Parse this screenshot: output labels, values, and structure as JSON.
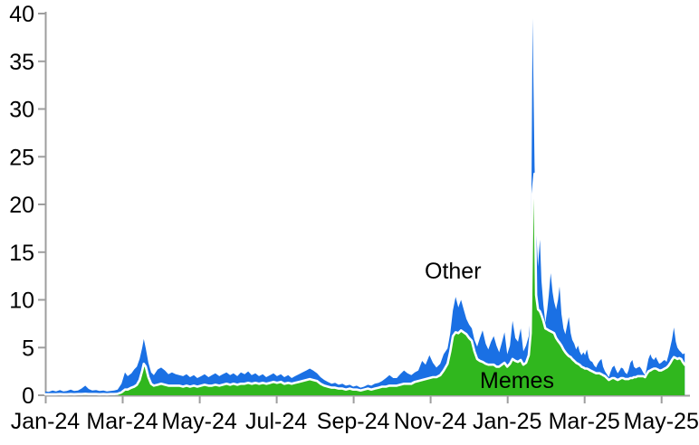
{
  "chart_data": {
    "type": "area",
    "stacked": true,
    "title": "",
    "xlabel": "",
    "ylabel": "",
    "ylim": [
      0,
      40
    ],
    "xlim_months": [
      0,
      16.7
    ],
    "x_unit": "months since Jan-2024 (fractional)",
    "grid": false,
    "legend": "inline-annotations",
    "y_ticks": [
      0,
      5,
      10,
      15,
      20,
      25,
      30,
      35,
      40
    ],
    "x_ticks": [
      {
        "label": "Jan-24",
        "m": 0
      },
      {
        "label": "Mar-24",
        "m": 2
      },
      {
        "label": "May-24",
        "m": 4
      },
      {
        "label": "Jul-24",
        "m": 6
      },
      {
        "label": "Sep-24",
        "m": 8
      },
      {
        "label": "Nov-24",
        "m": 10
      },
      {
        "label": "Jan-25",
        "m": 12
      },
      {
        "label": "Mar-25",
        "m": 14
      },
      {
        "label": "May-25",
        "m": 16
      }
    ],
    "series_meta": [
      {
        "name": "Memes",
        "color": "#30b71e"
      },
      {
        "name": "Other",
        "color": "#1a70e4"
      }
    ],
    "annotations": [
      {
        "text": "Other"
      },
      {
        "text": "Memes"
      }
    ],
    "axis_color": "#9e9e9e",
    "text_color": "#000000",
    "separator_color": "#ffffff",
    "points_format": [
      "month",
      "memes",
      "other"
    ],
    "points": [
      [
        0.0,
        0.1,
        0.3
      ],
      [
        0.09,
        0.1,
        0.25
      ],
      [
        0.19,
        0.1,
        0.4
      ],
      [
        0.28,
        0.1,
        0.3
      ],
      [
        0.38,
        0.12,
        0.43
      ],
      [
        0.47,
        0.1,
        0.3
      ],
      [
        0.56,
        0.1,
        0.35
      ],
      [
        0.66,
        0.12,
        0.48
      ],
      [
        0.75,
        0.1,
        0.35
      ],
      [
        0.85,
        0.12,
        0.38
      ],
      [
        0.94,
        0.12,
        0.58
      ],
      [
        1.04,
        0.15,
        0.85
      ],
      [
        1.13,
        0.12,
        0.53
      ],
      [
        1.22,
        0.12,
        0.38
      ],
      [
        1.32,
        0.12,
        0.43
      ],
      [
        1.41,
        0.1,
        0.35
      ],
      [
        1.51,
        0.12,
        0.38
      ],
      [
        1.6,
        0.1,
        0.3
      ],
      [
        1.69,
        0.12,
        0.33
      ],
      [
        1.79,
        0.12,
        0.38
      ],
      [
        1.88,
        0.15,
        0.45
      ],
      [
        1.98,
        0.3,
        0.9
      ],
      [
        2.07,
        0.6,
        1.8
      ],
      [
        2.14,
        0.6,
        1.4
      ],
      [
        2.24,
        0.8,
        1.5
      ],
      [
        2.31,
        0.9,
        1.8
      ],
      [
        2.38,
        1.1,
        1.9
      ],
      [
        2.45,
        1.6,
        2.2
      ],
      [
        2.52,
        2.6,
        2.4
      ],
      [
        2.56,
        3.3,
        2.6
      ],
      [
        2.61,
        3.0,
        1.9
      ],
      [
        2.68,
        1.9,
        1.5
      ],
      [
        2.75,
        1.2,
        1.2
      ],
      [
        2.82,
        1.0,
        1.1
      ],
      [
        2.92,
        1.1,
        1.6
      ],
      [
        3.01,
        1.2,
        1.7
      ],
      [
        3.11,
        1.1,
        1.5
      ],
      [
        3.2,
        1.0,
        1.2
      ],
      [
        3.29,
        1.0,
        1.4
      ],
      [
        3.39,
        1.0,
        1.2
      ],
      [
        3.48,
        1.0,
        1.1
      ],
      [
        3.58,
        0.9,
        1.1
      ],
      [
        3.67,
        1.0,
        1.2
      ],
      [
        3.76,
        0.9,
        1.0
      ],
      [
        3.86,
        1.0,
        1.1
      ],
      [
        3.95,
        0.9,
        0.9
      ],
      [
        4.05,
        1.0,
        1.0
      ],
      [
        4.14,
        1.1,
        1.1
      ],
      [
        4.24,
        1.0,
        0.9
      ],
      [
        4.33,
        1.0,
        1.1
      ],
      [
        4.42,
        1.1,
        1.2
      ],
      [
        4.52,
        1.0,
        1.0
      ],
      [
        4.61,
        1.1,
        1.1
      ],
      [
        4.71,
        1.2,
        1.2
      ],
      [
        4.8,
        1.1,
        1.0
      ],
      [
        4.89,
        1.2,
        1.1
      ],
      [
        4.99,
        1.1,
        0.9
      ],
      [
        5.08,
        1.2,
        1.2
      ],
      [
        5.18,
        1.2,
        1.0
      ],
      [
        5.27,
        1.3,
        1.2
      ],
      [
        5.36,
        1.2,
        0.9
      ],
      [
        5.46,
        1.3,
        1.0
      ],
      [
        5.55,
        1.2,
        0.8
      ],
      [
        5.65,
        1.3,
        0.9
      ],
      [
        5.74,
        1.2,
        0.7
      ],
      [
        5.84,
        1.3,
        0.8
      ],
      [
        5.93,
        1.4,
        0.9
      ],
      [
        6.02,
        1.3,
        0.7
      ],
      [
        6.12,
        1.4,
        0.8
      ],
      [
        6.21,
        1.2,
        0.7
      ],
      [
        6.31,
        1.3,
        0.8
      ],
      [
        6.4,
        1.2,
        0.6
      ],
      [
        6.49,
        1.3,
        0.7
      ],
      [
        6.59,
        1.4,
        0.8
      ],
      [
        6.68,
        1.5,
        0.9
      ],
      [
        6.78,
        1.6,
        1.0
      ],
      [
        6.87,
        1.7,
        1.1
      ],
      [
        6.96,
        1.6,
        1.0
      ],
      [
        7.06,
        1.5,
        0.8
      ],
      [
        7.15,
        1.2,
        0.7
      ],
      [
        7.25,
        1.0,
        0.6
      ],
      [
        7.34,
        0.9,
        0.5
      ],
      [
        7.44,
        0.8,
        0.4
      ],
      [
        7.53,
        0.8,
        0.5
      ],
      [
        7.62,
        0.7,
        0.4
      ],
      [
        7.72,
        0.7,
        0.5
      ],
      [
        7.81,
        0.6,
        0.4
      ],
      [
        7.91,
        0.7,
        0.4
      ],
      [
        8.0,
        0.6,
        0.3
      ],
      [
        8.09,
        0.6,
        0.4
      ],
      [
        8.19,
        0.5,
        0.3
      ],
      [
        8.28,
        0.6,
        0.3
      ],
      [
        8.38,
        0.7,
        0.4
      ],
      [
        8.47,
        0.6,
        0.4
      ],
      [
        8.56,
        0.7,
        0.5
      ],
      [
        8.66,
        0.8,
        0.5
      ],
      [
        8.75,
        0.9,
        0.6
      ],
      [
        8.85,
        0.9,
        0.9
      ],
      [
        8.94,
        1.0,
        1.1
      ],
      [
        9.04,
        1.0,
        0.8
      ],
      [
        9.13,
        1.0,
        0.8
      ],
      [
        9.22,
        1.1,
        1.1
      ],
      [
        9.32,
        1.2,
        1.4
      ],
      [
        9.41,
        1.2,
        1.1
      ],
      [
        9.51,
        1.2,
        0.9
      ],
      [
        9.6,
        1.4,
        1.0
      ],
      [
        9.69,
        1.5,
        1.1
      ],
      [
        9.79,
        1.6,
        2.0
      ],
      [
        9.88,
        1.7,
        1.5
      ],
      [
        9.98,
        1.8,
        2.4
      ],
      [
        10.07,
        1.9,
        1.5
      ],
      [
        10.16,
        1.9,
        1.0
      ],
      [
        10.26,
        2.1,
        1.2
      ],
      [
        10.35,
        2.6,
        1.7
      ],
      [
        10.45,
        3.3,
        1.6
      ],
      [
        10.52,
        4.6,
        1.9
      ],
      [
        10.59,
        6.2,
        2.7
      ],
      [
        10.66,
        6.6,
        3.7
      ],
      [
        10.73,
        6.5,
        2.7
      ],
      [
        10.8,
        6.8,
        3.2
      ],
      [
        10.87,
        6.6,
        2.4
      ],
      [
        10.94,
        6.4,
        1.6
      ],
      [
        11.01,
        6.0,
        1.4
      ],
      [
        11.08,
        5.7,
        1.3
      ],
      [
        11.15,
        4.6,
        1.2
      ],
      [
        11.22,
        3.8,
        1.3
      ],
      [
        11.29,
        3.6,
        2.4
      ],
      [
        11.36,
        3.5,
        3.3
      ],
      [
        11.44,
        3.3,
        2.1
      ],
      [
        11.51,
        3.2,
        1.6
      ],
      [
        11.58,
        3.2,
        2.4
      ],
      [
        11.65,
        3.2,
        3.0
      ],
      [
        11.72,
        3.0,
        2.2
      ],
      [
        11.79,
        3.0,
        1.5
      ],
      [
        11.86,
        3.2,
        2.3
      ],
      [
        11.93,
        3.4,
        3.2
      ],
      [
        12.0,
        3.0,
        1.3
      ],
      [
        12.07,
        3.3,
        1.9
      ],
      [
        12.14,
        3.8,
        4.0
      ],
      [
        12.21,
        3.6,
        2.4
      ],
      [
        12.28,
        3.5,
        2.1
      ],
      [
        12.35,
        3.7,
        3.3
      ],
      [
        12.42,
        3.2,
        1.4
      ],
      [
        12.49,
        3.4,
        1.8
      ],
      [
        12.56,
        4.2,
        2.0
      ],
      [
        12.61,
        6.5,
        2.0
      ],
      [
        12.66,
        21.0,
        18.5
      ],
      [
        12.71,
        23.2,
        0.8
      ],
      [
        12.75,
        10.5,
        7.0
      ],
      [
        12.8,
        9.0,
        4.5
      ],
      [
        12.85,
        8.8,
        7.5
      ],
      [
        12.89,
        8.4,
        3.6
      ],
      [
        12.94,
        7.8,
        1.7
      ],
      [
        12.99,
        7.0,
        0.6
      ],
      [
        13.04,
        6.9,
        2.1
      ],
      [
        13.08,
        6.8,
        3.7
      ],
      [
        13.13,
        6.7,
        6.1
      ],
      [
        13.18,
        6.6,
        4.2
      ],
      [
        13.22,
        6.5,
        3.3
      ],
      [
        13.27,
        6.0,
        3.0
      ],
      [
        13.32,
        5.7,
        4.3
      ],
      [
        13.36,
        5.5,
        5.9
      ],
      [
        13.41,
        5.2,
        3.3
      ],
      [
        13.46,
        4.8,
        2.2
      ],
      [
        13.51,
        4.5,
        1.9
      ],
      [
        13.55,
        4.3,
        2.9
      ],
      [
        13.6,
        4.1,
        4.1
      ],
      [
        13.65,
        4.0,
        2.5
      ],
      [
        13.69,
        3.8,
        2.0
      ],
      [
        13.74,
        3.6,
        1.8
      ],
      [
        13.79,
        3.4,
        1.4
      ],
      [
        13.84,
        3.3,
        1.9
      ],
      [
        13.88,
        3.2,
        1.4
      ],
      [
        13.93,
        3.0,
        1.2
      ],
      [
        13.98,
        2.9,
        1.6
      ],
      [
        14.02,
        2.8,
        1.4
      ],
      [
        14.07,
        2.8,
        2.0
      ],
      [
        14.12,
        2.7,
        1.2
      ],
      [
        14.16,
        2.6,
        1.0
      ],
      [
        14.21,
        2.5,
        1.0
      ],
      [
        14.26,
        2.4,
        0.7
      ],
      [
        14.31,
        2.3,
        0.6
      ],
      [
        14.35,
        2.3,
        1.0
      ],
      [
        14.4,
        2.3,
        1.3
      ],
      [
        14.45,
        2.2,
        1.6
      ],
      [
        14.49,
        2.1,
        0.9
      ],
      [
        14.54,
        2.0,
        0.5
      ],
      [
        14.59,
        1.8,
        0.4
      ],
      [
        14.64,
        1.6,
        0.3
      ],
      [
        14.68,
        1.7,
        0.7
      ],
      [
        14.73,
        1.8,
        1.1
      ],
      [
        14.78,
        1.8,
        1.3
      ],
      [
        14.82,
        1.7,
        1.0
      ],
      [
        14.87,
        1.6,
        0.7
      ],
      [
        14.92,
        1.7,
        0.9
      ],
      [
        14.96,
        1.8,
        1.1
      ],
      [
        15.01,
        1.8,
        1.0
      ],
      [
        15.06,
        1.7,
        0.7
      ],
      [
        15.11,
        1.7,
        0.5
      ],
      [
        15.15,
        1.7,
        0.9
      ],
      [
        15.2,
        1.8,
        1.6
      ],
      [
        15.25,
        1.8,
        1.9
      ],
      [
        15.29,
        1.9,
        1.1
      ],
      [
        15.34,
        1.9,
        0.9
      ],
      [
        15.39,
        2.0,
        0.9
      ],
      [
        15.44,
        2.0,
        1.0
      ],
      [
        15.48,
        2.0,
        0.8
      ],
      [
        15.53,
        2.0,
        0.4
      ],
      [
        15.58,
        1.9,
        0.2
      ],
      [
        15.62,
        2.2,
        0.6
      ],
      [
        15.67,
        2.5,
        1.3
      ],
      [
        15.72,
        2.6,
        1.7
      ],
      [
        15.76,
        2.7,
        1.2
      ],
      [
        15.81,
        2.8,
        0.9
      ],
      [
        15.86,
        2.8,
        1.2
      ],
      [
        15.91,
        2.7,
        0.9
      ],
      [
        15.95,
        2.6,
        0.7
      ],
      [
        16.0,
        2.6,
        0.8
      ],
      [
        16.05,
        2.7,
        0.9
      ],
      [
        16.09,
        2.8,
        0.9
      ],
      [
        16.14,
        2.9,
        0.6
      ],
      [
        16.19,
        3.1,
        1.1
      ],
      [
        16.24,
        3.4,
        1.7
      ],
      [
        16.28,
        3.7,
        2.1
      ],
      [
        16.33,
        4.0,
        3.1
      ],
      [
        16.38,
        3.9,
        1.7
      ],
      [
        16.42,
        3.8,
        1.2
      ],
      [
        16.47,
        3.9,
        0.8
      ],
      [
        16.52,
        3.8,
        0.7
      ],
      [
        16.56,
        3.5,
        0.8
      ],
      [
        16.61,
        3.2,
        1.2
      ]
    ]
  }
}
